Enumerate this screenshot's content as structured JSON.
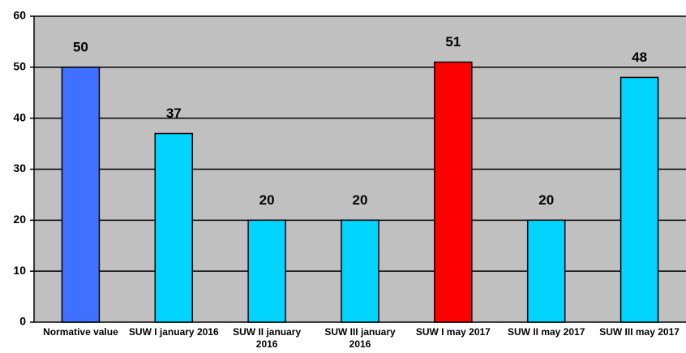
{
  "chart_data": {
    "type": "bar",
    "categories": [
      "Normative value",
      "SUW I  january 2016",
      "SUW II january 2016",
      "SUW III  january 2016",
      "SUW I may 2017",
      "SUW II may 2017",
      "SUW III may 2017"
    ],
    "values": [
      50,
      37,
      20,
      20,
      51,
      20,
      48
    ],
    "colors": [
      "#4070ff",
      "#00d4ff",
      "#00d4ff",
      "#00d4ff",
      "#ff0000",
      "#00d4ff",
      "#00d4ff"
    ],
    "ylim": [
      0,
      60
    ],
    "yticks": [
      0,
      10,
      20,
      30,
      40,
      50,
      60
    ],
    "grid": true
  }
}
